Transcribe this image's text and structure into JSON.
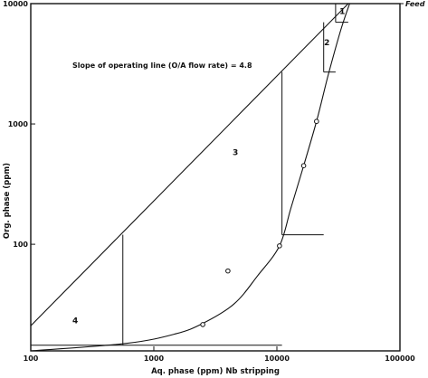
{
  "chart_data": {
    "type": "line",
    "title": "",
    "xlabel": "Aq. phase (ppm) Nb stripping",
    "ylabel": "Org. phase (ppm)",
    "x_scale": "log",
    "y_scale": "log",
    "xlim": [
      100,
      100000
    ],
    "ylim": [
      13,
      10000
    ],
    "x_ticks": [
      100,
      1000,
      10000,
      100000
    ],
    "x_tick_labels": [
      "100",
      "1000",
      "10000",
      "100000"
    ],
    "y_ticks": [
      100,
      1000,
      10000
    ],
    "y_tick_labels": [
      "100",
      "1000",
      "10000"
    ],
    "grid": false,
    "legend": "none",
    "annotation": "Slope of operating line (O/A flow rate) = 4.8",
    "feed_label": "Feed",
    "feed_level": 10000,
    "operating_line": {
      "x": [
        100,
        38000
      ],
      "y": [
        21,
        10000
      ]
    },
    "equilibrium_points": {
      "x": [
        2500,
        4000,
        10500,
        16500,
        21000
      ],
      "y": [
        21.5,
        60,
        97,
        450,
        1050
      ]
    },
    "equilibrium_curve": {
      "x": [
        100,
        600,
        1500,
        2500,
        4500,
        7000,
        10500,
        13000,
        16500,
        21000,
        26000,
        33000,
        39000
      ],
      "y": [
        13,
        15,
        18,
        22,
        32,
        55,
        97,
        200,
        450,
        1050,
        2500,
        6000,
        10000
      ]
    },
    "stages": [
      {
        "label": "1",
        "x_left": 30000,
        "x_right": 38000,
        "y_bottom": 7000,
        "y_top": 10000
      },
      {
        "label": "2",
        "x_left": 24000,
        "x_right": 30000,
        "y_bottom": 2700,
        "y_top": 7000
      },
      {
        "label": "3",
        "x_left": 11000,
        "x_right": 24000,
        "y_bottom": 120,
        "y_top": 2700
      },
      {
        "label": "4",
        "x_left": 560,
        "x_right": 11000,
        "y_bottom": 14.5,
        "y_top": 120
      }
    ],
    "stage_label_positions": [
      {
        "label": "1",
        "x": 34000,
        "y": 8200
      },
      {
        "label": "2",
        "x": 25500,
        "y": 4500
      },
      {
        "label": "3",
        "x": 4600,
        "y": 550
      },
      {
        "label": "4",
        "x": 230,
        "y": 22
      }
    ]
  },
  "colors": {
    "line": "#111111",
    "background": "#ffffff"
  }
}
